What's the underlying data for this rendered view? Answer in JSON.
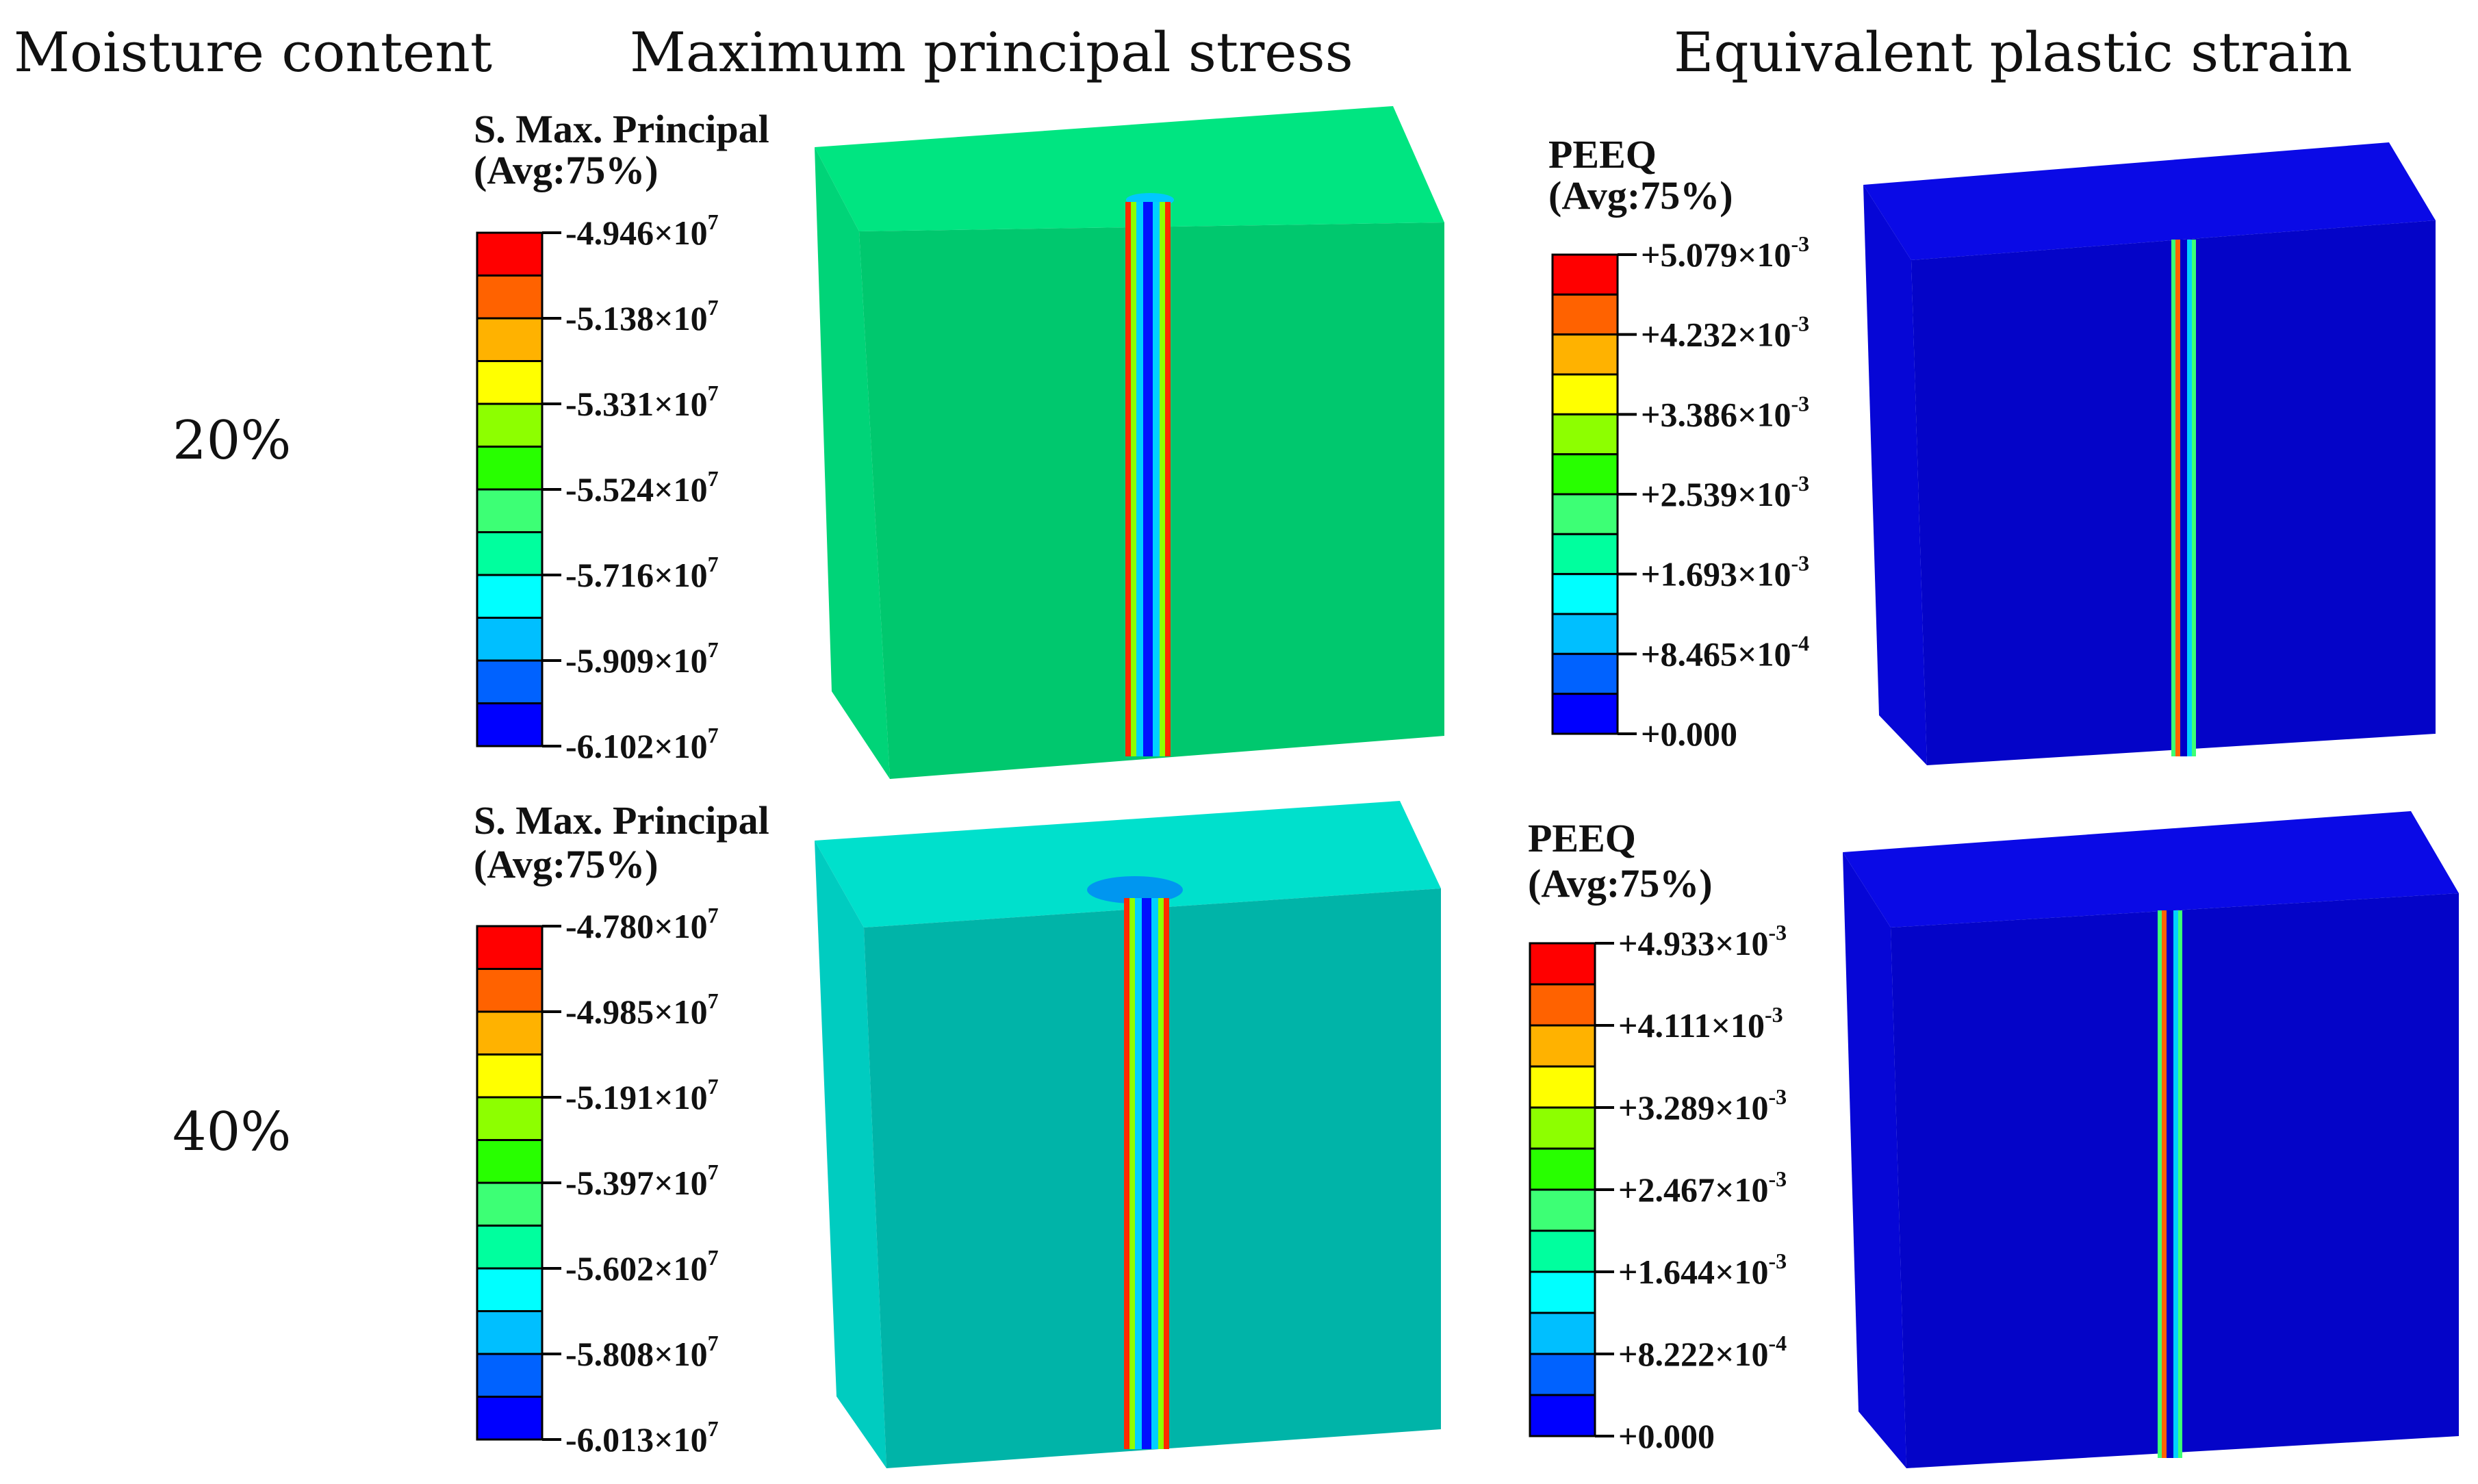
{
  "headers": {
    "moisture": "Moisture content",
    "stress": "Maximum principal stress",
    "strain": "Equivalent plastic strain"
  },
  "palette": [
    "#ff0000",
    "#ff6200",
    "#ffb200",
    "#ffff00",
    "#8dff00",
    "#28ff00",
    "#3dff75",
    "#00ff9e",
    "#00ffff",
    "#00bfff",
    "#0062ff",
    "#0000ff"
  ],
  "rows": [
    {
      "moisture": "20%",
      "stress_legend": {
        "title": "S. Max. Principal",
        "subtitle": "(Avg:75%)",
        "ticks": [
          {
            "mant": "-4.946×10",
            "exp": "7"
          },
          {
            "mant": "-5.138×10",
            "exp": "7"
          },
          {
            "mant": "-5.331×10",
            "exp": "7"
          },
          {
            "mant": "-5.524×10",
            "exp": "7"
          },
          {
            "mant": "-5.716×10",
            "exp": "7"
          },
          {
            "mant": "-5.909×10",
            "exp": "7"
          },
          {
            "mant": "-6.102×10",
            "exp": "7"
          }
        ]
      },
      "strain_legend": {
        "title": "PEEQ",
        "subtitle": "(Avg:75%)",
        "ticks": [
          {
            "mant": "+5.079×10",
            "exp": "-3"
          },
          {
            "mant": "+4.232×10",
            "exp": "-3"
          },
          {
            "mant": "+3.386×10",
            "exp": "-3"
          },
          {
            "mant": "+2.539×10",
            "exp": "-3"
          },
          {
            "mant": "+1.693×10",
            "exp": "-3"
          },
          {
            "mant": "+8.465×10",
            "exp": "-4"
          },
          {
            "mant": "+0.000",
            "exp": ""
          }
        ]
      },
      "stress_colors": {
        "top": "#00e581",
        "front": "#00c86e",
        "side": "#00d478"
      },
      "strain_colors": {
        "top": "#0a0ae6",
        "front": "#0404c8",
        "side": "#0606d6"
      }
    },
    {
      "moisture": "40%",
      "stress_legend": {
        "title": "S. Max. Principal",
        "subtitle": "(Avg:75%)",
        "ticks": [
          {
            "mant": "-4.780×10",
            "exp": "7"
          },
          {
            "mant": "-4.985×10",
            "exp": "7"
          },
          {
            "mant": "-5.191×10",
            "exp": "7"
          },
          {
            "mant": "-5.397×10",
            "exp": "7"
          },
          {
            "mant": "-5.602×10",
            "exp": "7"
          },
          {
            "mant": "-5.808×10",
            "exp": "7"
          },
          {
            "mant": "-6.013×10",
            "exp": "7"
          }
        ]
      },
      "strain_legend": {
        "title": "PEEQ",
        "subtitle": "(Avg:75%)",
        "ticks": [
          {
            "mant": "+4.933×10",
            "exp": "-3"
          },
          {
            "mant": "+4.111×10",
            "exp": "-3"
          },
          {
            "mant": "+3.289×10",
            "exp": "-3"
          },
          {
            "mant": "+2.467×10",
            "exp": "-3"
          },
          {
            "mant": "+1.644×10",
            "exp": "-3"
          },
          {
            "mant": "+8.222×10",
            "exp": "-4"
          },
          {
            "mant": "+0.000",
            "exp": ""
          }
        ]
      },
      "stress_colors": {
        "top": "#00e0cc",
        "front": "#00b4a8",
        "side": "#00ccc0"
      },
      "strain_colors": {
        "top": "#0a0ae6",
        "front": "#0404c8",
        "side": "#0606d6"
      }
    }
  ]
}
